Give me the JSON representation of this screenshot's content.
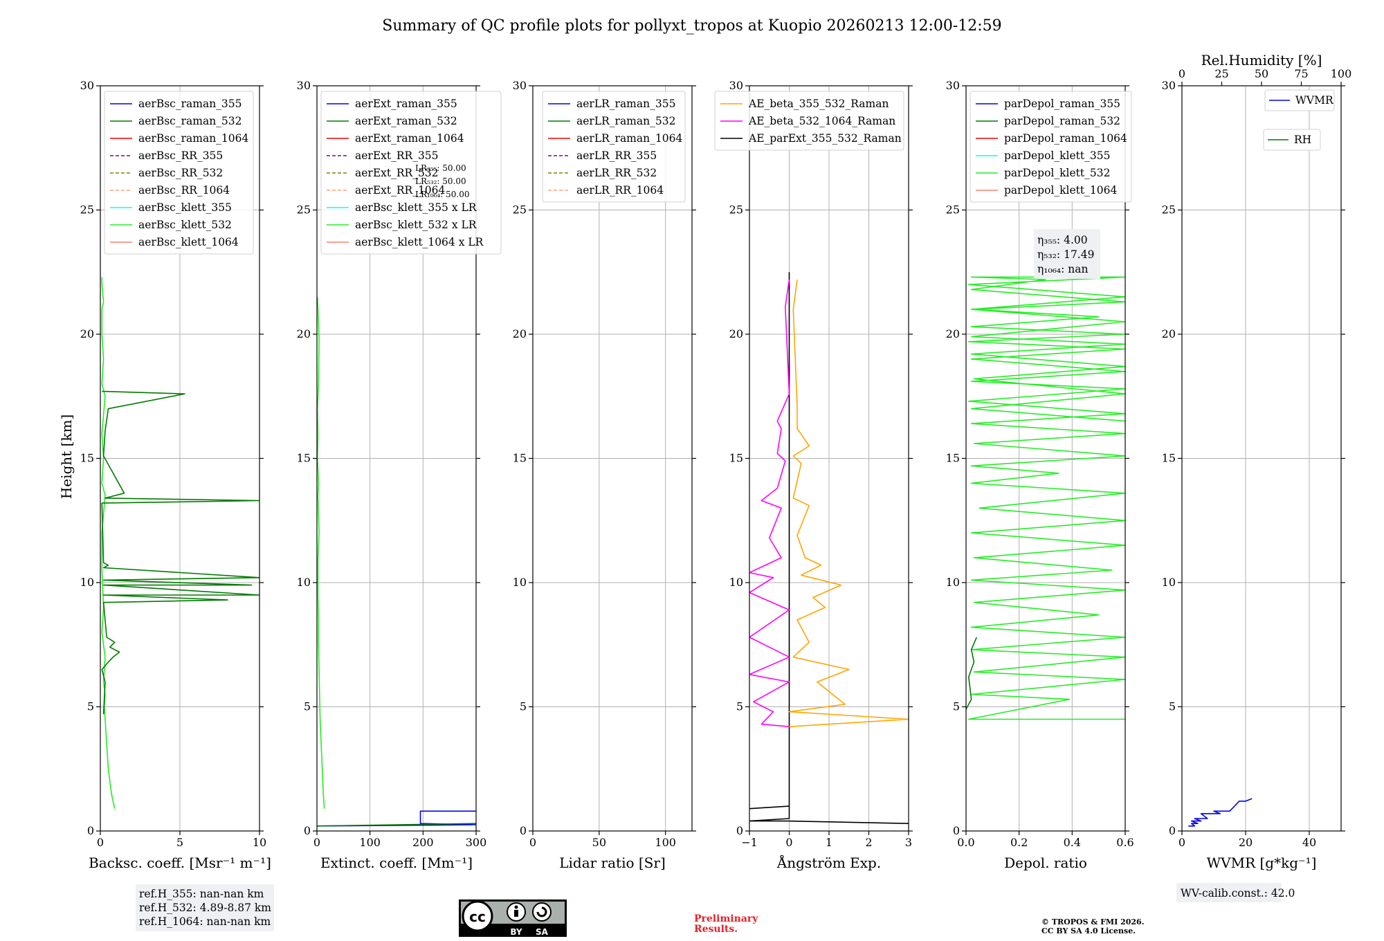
{
  "title": "Summary of QC profile plots for pollyxt_tropos at Kuopio 20260213 12:00-12:59",
  "ylabel": "Height [km]",
  "chart_data": [
    {
      "id": "bsc",
      "type": "line",
      "xlabel": "Backsc. coeff. [Msr$^{-1}$ m$^{-1}$]",
      "xlabel_text": "Backsc. coeff. [Msr⁻¹ m⁻¹]",
      "xlim": [
        0,
        10
      ],
      "xticks": [
        0,
        5,
        10
      ],
      "ylim": [
        0,
        30
      ],
      "yticks": [
        0,
        5,
        10,
        15,
        20,
        25,
        30
      ],
      "legend": [
        "aerBsc_raman_355",
        "aerBsc_raman_532",
        "aerBsc_raman_1064",
        "aerBsc_RR_355",
        "aerBsc_RR_532",
        "aerBsc_RR_1064",
        "aerBsc_klett_355",
        "aerBsc_klett_532",
        "aerBsc_klett_1064"
      ],
      "series": [
        {
          "name": "aerBsc_klett_532",
          "color": "#22ee22",
          "x": [
            0.9,
            0.7,
            0.5,
            0.4,
            0.3,
            0.25,
            0.3,
            0.2,
            0.3,
            0.1,
            0.2,
            0.1,
            0.1,
            0.3,
            0.1,
            0.2,
            0.1,
            0.3,
            0.1,
            0.2,
            0.1,
            0.1,
            0.2,
            0.1,
            0.1
          ],
          "y": [
            0.9,
            1.5,
            2.5,
            3.5,
            4.5,
            5.0,
            5.5,
            6.0,
            7.0,
            8.0,
            9.0,
            10.5,
            12.0,
            13.5,
            14.0,
            15.0,
            16.0,
            17.5,
            18.0,
            19.0,
            20.0,
            21.0,
            21.3,
            22.0,
            22.3
          ]
        },
        {
          "name": "aerBsc_raman_532",
          "color": "#007a00",
          "x": [
            0.2,
            0.3,
            0.1,
            0.5,
            0.8,
            1.2,
            0.6,
            0.9,
            0.4,
            0.3,
            0.2,
            8.0,
            0.2,
            10.0,
            0.2,
            9.5,
            0.2,
            10.0,
            0.2,
            0.5,
            0.2,
            0.1,
            10.0,
            0.3,
            1.5,
            0.2,
            0.3,
            0.5,
            5.3,
            0.1
          ],
          "y": [
            4.7,
            6.0,
            6.5,
            6.8,
            7.0,
            7.2,
            7.4,
            7.6,
            7.8,
            8.5,
            9.2,
            9.3,
            9.5,
            9.5,
            9.9,
            9.9,
            10.1,
            10.2,
            10.6,
            10.7,
            10.8,
            13.2,
            13.3,
            13.4,
            13.6,
            15.1,
            16.1,
            17.0,
            17.6,
            17.7
          ]
        }
      ],
      "refbox": [
        "ref.H_355: nan-nan km",
        "ref.H_532: 4.89-8.87 km",
        "ref.H_1064: nan-nan km"
      ]
    },
    {
      "id": "ext",
      "type": "line",
      "xlabel_text": "Extinct. coeff. [Mm⁻¹]",
      "xlim": [
        0,
        300
      ],
      "xticks": [
        0,
        100,
        200,
        300
      ],
      "ylim": [
        0,
        30
      ],
      "yticks": [
        0,
        5,
        10,
        15,
        20,
        25,
        30
      ],
      "legend": [
        "aerExt_raman_355",
        "aerExt_raman_532",
        "aerExt_raman_1064",
        "aerExt_RR_355",
        "aerExt_RR_532",
        "aerExt_RR_1064",
        "aerBsc_klett_355 x LR",
        "aerBsc_klett_532 x LR",
        "aerBsc_klett_1064 x LR"
      ],
      "lr_notes": [
        "LR₃₅₅: 50.00",
        "LR₅₃₂: 50.00",
        "LR₁₀₆₄: 50.00"
      ],
      "series": [
        {
          "name": "aerBsc_klett_532 x LR",
          "color": "#22ee22",
          "x": [
            14,
            12,
            10,
            8,
            6,
            5,
            4,
            3,
            3,
            2,
            2,
            4,
            2,
            3,
            1,
            2,
            1,
            3,
            4,
            2,
            1
          ],
          "y": [
            0.9,
            1.5,
            2.5,
            3.5,
            4.5,
            5.5,
            6.5,
            7.5,
            8.5,
            9.5,
            11.0,
            12.0,
            13.5,
            14.0,
            15.0,
            16.0,
            17.0,
            18.0,
            19.8,
            21.0,
            21.5
          ]
        },
        {
          "name": "aerExt_raman_355",
          "color": "#0000ee",
          "x": [
            0,
            300,
            300,
            195,
            195,
            300
          ],
          "y": [
            0.2,
            0.25,
            0.25,
            0.3,
            0.8,
            0.8
          ]
        },
        {
          "name": "aerExt_raman_532",
          "color": "#007a00",
          "x": [
            0,
            300
          ],
          "y": [
            0.2,
            0.3
          ]
        }
      ]
    },
    {
      "id": "lr",
      "type": "line",
      "xlabel_text": "Lidar ratio [Sr]",
      "xlim": [
        0,
        120
      ],
      "xticks": [
        0,
        50,
        100
      ],
      "ylim": [
        0,
        30
      ],
      "yticks": [
        0,
        5,
        10,
        15,
        20,
        25,
        30
      ],
      "legend": [
        "aerLR_raman_355",
        "aerLR_raman_532",
        "aerLR_raman_1064",
        "aerLR_RR_355",
        "aerLR_RR_532",
        "aerLR_RR_1064"
      ],
      "series": []
    },
    {
      "id": "ae",
      "type": "line",
      "xlabel_text": "Ångström Exp.",
      "xlim": [
        -1,
        3
      ],
      "xticks": [
        -1,
        0,
        1,
        2,
        3
      ],
      "ylim": [
        0,
        30
      ],
      "yticks": [
        0,
        5,
        10,
        15,
        20,
        25,
        30
      ],
      "legend": [
        "AE_beta_355_532_Raman",
        "AE_beta_532_1064_Raman",
        "AE_parExt_355_532_Raman"
      ],
      "series": [
        {
          "name": "AE_parExt_355_532_Raman",
          "color": "#000000",
          "x": [
            3,
            0,
            -1,
            0,
            0,
            -1,
            0,
            0
          ],
          "y": [
            0.3,
            0.4,
            0.4,
            0.5,
            1.0,
            0.9,
            1.0,
            22.5
          ]
        },
        {
          "name": "AE_beta_355_532_Raman",
          "color": "#ffa500",
          "x": [
            0,
            3,
            0,
            1.4,
            0.7,
            1.5,
            0.1,
            0.5,
            0.2,
            0.9,
            0.6,
            1.3,
            0.3,
            0.8,
            0.4,
            0.2,
            0.5,
            0.1,
            0.3,
            0.1,
            0.5,
            0.2,
            0.2,
            0.1,
            0.2
          ],
          "y": [
            4.2,
            4.5,
            4.8,
            5.1,
            6.0,
            6.5,
            7.0,
            7.6,
            8.5,
            9.0,
            9.4,
            9.9,
            10.3,
            10.7,
            11.0,
            11.9,
            13.1,
            13.4,
            14.8,
            15.1,
            15.5,
            16.2,
            17.1,
            21.0,
            22.2
          ]
        },
        {
          "name": "AE_beta_532_1064_Raman",
          "color": "#ff00ff",
          "x": [
            0,
            -0.7,
            -0.4,
            -0.9,
            0,
            -1,
            0,
            -1,
            0,
            -1,
            -0.4,
            -1,
            -0.2,
            -0.5,
            -0.2,
            -0.7,
            -0.3,
            -0.1,
            -0.3,
            -0.2,
            -0.3,
            0,
            -0.1,
            0
          ],
          "y": [
            4.2,
            4.3,
            4.8,
            5.2,
            6.0,
            6.3,
            7.0,
            7.8,
            8.9,
            9.6,
            10.2,
            10.4,
            11.0,
            11.8,
            13.0,
            13.3,
            13.8,
            14.9,
            15.2,
            16.2,
            16.5,
            17.6,
            21.1,
            22.2
          ]
        }
      ]
    },
    {
      "id": "depol",
      "type": "line",
      "xlabel_text": "Depol. ratio",
      "xlim": [
        0,
        0.6
      ],
      "xticks": [
        0.0,
        0.2,
        0.4,
        0.6
      ],
      "xtick_labels": [
        "0.0",
        "0.2",
        "0.4",
        "0.6"
      ],
      "ylim": [
        0,
        30
      ],
      "yticks": [
        0,
        5,
        10,
        15,
        20,
        25,
        30
      ],
      "legend": [
        "parDepol_raman_355",
        "parDepol_raman_532",
        "parDepol_raman_1064",
        "parDepol_klett_355",
        "parDepol_klett_532",
        "parDepol_klett_1064"
      ],
      "eta": [
        "η₃₅₅: 4.00",
        "η₅₃₂: 17.49",
        "η₁₀₆₄: nan"
      ],
      "series": [
        {
          "name": "parDepol_klett_532",
          "color": "#22ee22",
          "x": [
            0.6,
            0.01,
            0.39,
            0.02,
            0.6,
            0.03,
            0.6,
            0.02,
            0.6,
            0.02,
            0.5,
            0.03,
            0.6,
            0.02,
            0.55,
            0.03,
            0.6,
            0.02,
            0.6,
            0.05,
            0.6,
            0.02,
            0.35,
            0.02,
            0.6,
            0.03,
            0.6,
            0.02,
            0.6,
            0.01,
            0.6,
            0.02,
            0.6,
            0.02,
            0.6,
            0.01,
            0.6,
            0.02,
            0.5,
            0.03,
            0.6,
            0.02,
            0.3,
            0.02,
            0.6,
            0.01,
            0.6,
            0.02,
            0.6,
            0.02,
            0.6,
            0.02,
            0.6,
            0.03,
            0.6,
            0.02,
            0.6
          ],
          "y": [
            4.5,
            4.5,
            5.3,
            5.5,
            6.1,
            6.4,
            7.0,
            7.3,
            7.8,
            8.2,
            8.7,
            9.2,
            9.7,
            10.1,
            10.5,
            11.0,
            11.5,
            12.0,
            12.5,
            13.0,
            13.6,
            14.0,
            14.4,
            14.7,
            15.1,
            15.6,
            16.0,
            16.4,
            16.8,
            17.3,
            17.8,
            18.1,
            18.5,
            19.0,
            19.4,
            19.7,
            20.0,
            20.3,
            20.7,
            21.0,
            21.3,
            21.8,
            22.2,
            22.3,
            22.3,
            22.0,
            21.5,
            21.0,
            20.5,
            19.9,
            19.6,
            19.2,
            18.7,
            18.2,
            17.6,
            17.0,
            16.5
          ]
        },
        {
          "name": "parDepol_raman_532",
          "color": "#007a00",
          "x": [
            0.0,
            0.02,
            0.01,
            0.03,
            0.02,
            0.04
          ],
          "y": [
            4.9,
            5.3,
            6.2,
            6.8,
            7.3,
            7.8
          ]
        }
      ]
    },
    {
      "id": "wv",
      "type": "line",
      "xlabel_text": "WVMR [g*kg⁻¹]",
      "xlim": [
        0,
        50
      ],
      "xticks": [
        0,
        20,
        40
      ],
      "ylim": [
        0,
        30
      ],
      "yticks": [
        0,
        5,
        10,
        15,
        20,
        25,
        30
      ],
      "top_xlabel": "Rel.Humidity [%]",
      "top_xlim": [
        0,
        100
      ],
      "top_xticks": [
        0,
        25,
        50,
        75,
        100
      ],
      "legend": [
        "WVMR",
        "RH"
      ],
      "calib": "WV-calib.const.: 42.0",
      "series": [
        {
          "name": "WVMR",
          "color": "#0000ee",
          "x": [
            2,
            4,
            3,
            5,
            3,
            6,
            4,
            8,
            6,
            12,
            10,
            15,
            18,
            20,
            22
          ],
          "y": [
            0.2,
            0.2,
            0.3,
            0.3,
            0.4,
            0.4,
            0.5,
            0.5,
            0.7,
            0.7,
            0.8,
            0.8,
            1.2,
            1.2,
            1.3
          ]
        }
      ]
    }
  ],
  "footer": {
    "preliminary": [
      "Preliminary",
      "Results."
    ],
    "copyright": [
      "© TROPOS & FMI 2026.",
      "CC BY SA 4.0 License."
    ],
    "cc_badge": [
      "BY",
      "SA"
    ]
  },
  "colors": {
    "raman_355": "#0000ee",
    "raman_532": "#007a00",
    "raman_1064": "#ee0000",
    "RR_355": "#800080",
    "RR_532": "#808000",
    "RR_1064": "#ffa07a",
    "klett_355": "#00ffff",
    "klett_532": "#22ee22",
    "klett_1064": "#fa8072",
    "AE_beta_355_532": "#ffa500",
    "AE_beta_532_1064": "#ff00ff",
    "AE_parExt": "#000000",
    "WVMR": "#0000ee",
    "RH": "#007a00"
  }
}
